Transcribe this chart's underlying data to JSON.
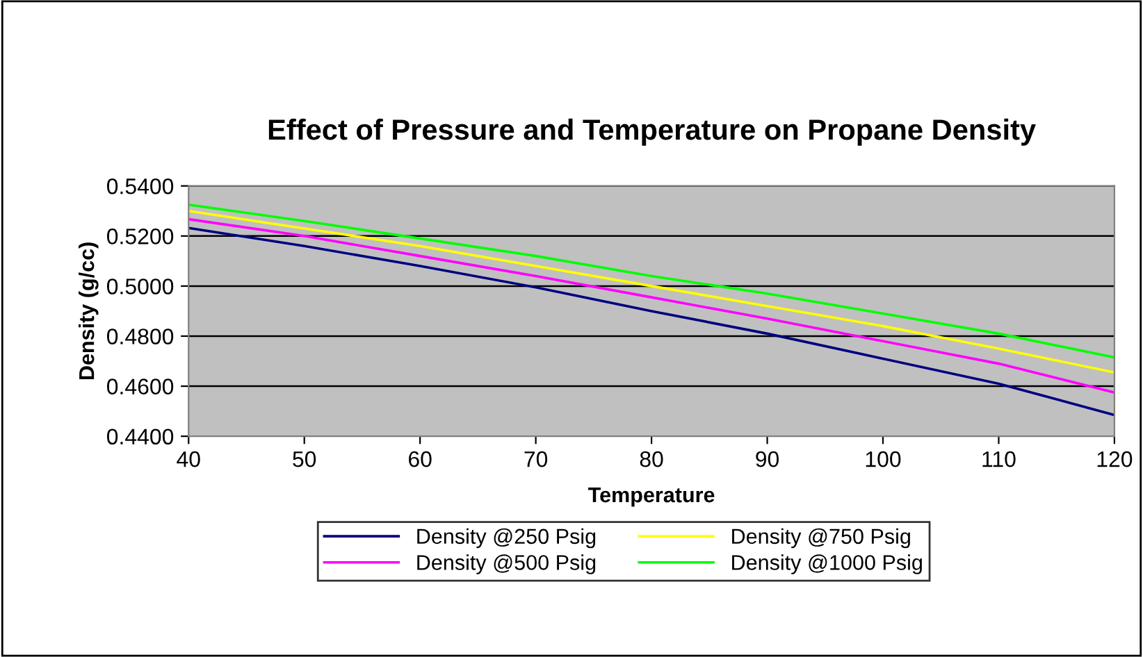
{
  "chart_data": {
    "type": "line",
    "title": "Effect of Pressure and Temperature on Propane Density",
    "xlabel": "Temperature",
    "ylabel": "Density (g/cc)",
    "x": [
      40,
      50,
      60,
      70,
      80,
      90,
      100,
      110,
      120
    ],
    "series": [
      {
        "name": "Density @250 Psig",
        "color": "#000080",
        "values": [
          0.5232,
          0.516,
          0.508,
          0.4995,
          0.49,
          0.481,
          0.471,
          0.461,
          0.4485
        ]
      },
      {
        "name": "Density @500 Psig",
        "color": "#ff00ff",
        "values": [
          0.5267,
          0.52,
          0.512,
          0.504,
          0.4955,
          0.487,
          0.478,
          0.469,
          0.4575
        ]
      },
      {
        "name": "Density @750 Psig",
        "color": "#ffff00",
        "values": [
          0.53,
          0.523,
          0.516,
          0.508,
          0.5,
          0.492,
          0.484,
          0.475,
          0.4655
        ]
      },
      {
        "name": "Density @1000 Psig",
        "color": "#00ff00",
        "values": [
          0.5325,
          0.526,
          0.519,
          0.512,
          0.504,
          0.497,
          0.489,
          0.481,
          0.4715
        ]
      }
    ],
    "xlim": [
      40,
      120
    ],
    "xticks": [
      40,
      50,
      60,
      70,
      80,
      90,
      100,
      110,
      120
    ],
    "ylim": [
      0.44,
      0.54
    ],
    "yticks": [
      {
        "value": 0.44,
        "label": "0.4400"
      },
      {
        "value": 0.46,
        "label": "0.4600"
      },
      {
        "value": 0.48,
        "label": "0.4800"
      },
      {
        "value": 0.5,
        "label": "0.5000"
      },
      {
        "value": 0.52,
        "label": "0.5200"
      },
      {
        "value": 0.54,
        "label": "0.5400"
      }
    ],
    "grid": "y",
    "legend": "bottom",
    "marker": "none",
    "line_style": "solid"
  }
}
